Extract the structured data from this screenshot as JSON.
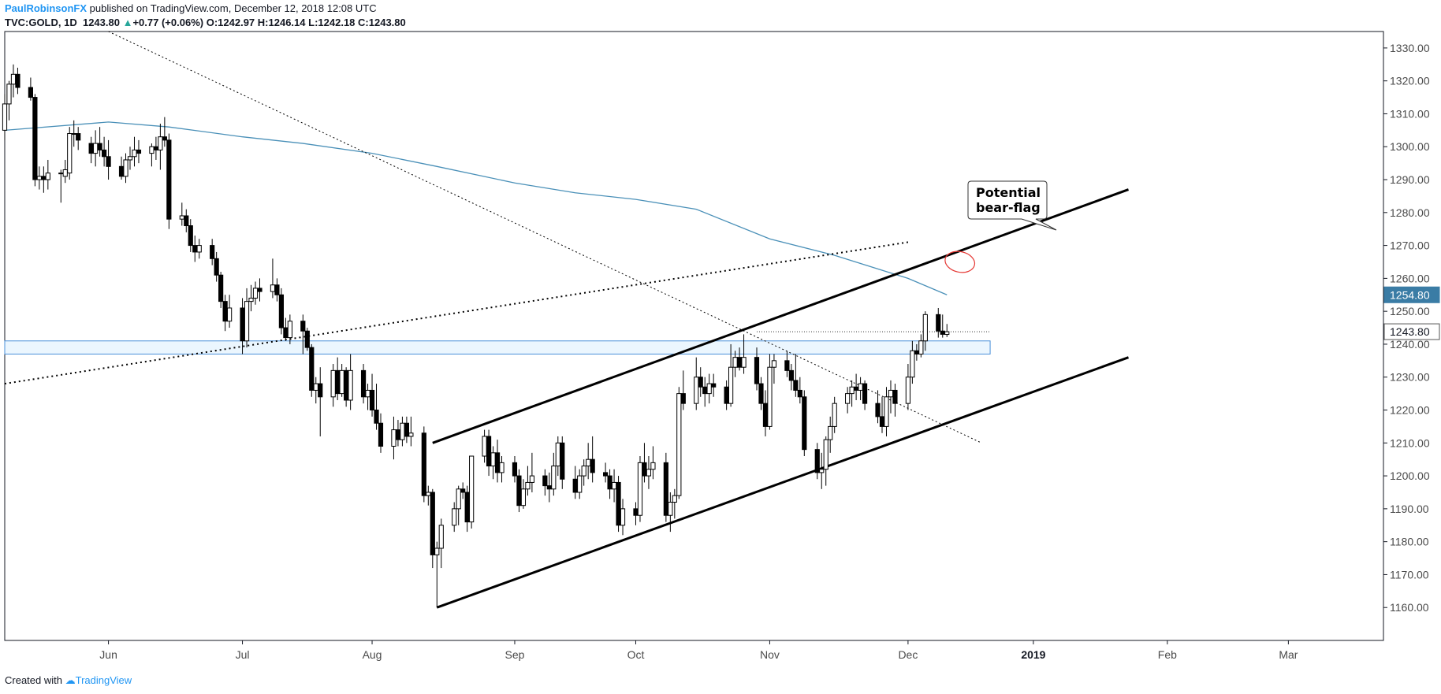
{
  "header": {
    "author": "PaulRobinsonFX",
    "published_text": "published on TradingView.com, December 12, 2018 12:08 UTC",
    "symbol": "TVC:GOLD, 1D",
    "last": "1243.80",
    "change": "+0.77 (+0.06%)",
    "o_label": "O:",
    "o_value": "1242.97",
    "h_label": "H:",
    "h_value": "1246.14",
    "l_label": "L:",
    "l_value": "1242.18",
    "c_label": "C:",
    "c_value": "1243.80"
  },
  "footer": {
    "created_with": "Created with",
    "brand": "TradingView"
  },
  "price_labels": {
    "sma": "1254.80",
    "last": "1243.80"
  },
  "annotation": {
    "line1": "Potential",
    "line2": "bear-flag"
  },
  "colors": {
    "up": "#ffffff",
    "down": "#000000",
    "candle_border": "#000000",
    "sma": "#4a90b8",
    "zone_fill": "#e3f2fd",
    "zone_border": "#4a90d9",
    "circle": "#e53935",
    "sma_tag": "#3a7ca5",
    "last_tag_border": "#555555"
  },
  "chart_data": {
    "type": "candlestick",
    "y_axis": {
      "range": [
        1150,
        1335
      ],
      "ticks": [
        "1160.00",
        "1170.00",
        "1180.00",
        "1190.00",
        "1200.00",
        "1210.00",
        "1220.00",
        "1230.00",
        "1240.00",
        "1250.00",
        "1260.00",
        "1270.00",
        "1280.00",
        "1290.00",
        "1300.00",
        "1310.00",
        "1320.00",
        "1330.00"
      ]
    },
    "x_axis": {
      "range": [
        "2018-05-08",
        "2019-03-23"
      ],
      "ticks": [
        {
          "date": "2018-06-01",
          "label": "Jun"
        },
        {
          "date": "2018-07-02",
          "label": "Jul"
        },
        {
          "date": "2018-08-01",
          "label": "Aug"
        },
        {
          "date": "2018-09-03",
          "label": "Sep"
        },
        {
          "date": "2018-10-01",
          "label": "Oct"
        },
        {
          "date": "2018-11-01",
          "label": "Nov"
        },
        {
          "date": "2018-12-03",
          "label": "Dec"
        },
        {
          "date": "2019-01-01",
          "label": "2019",
          "bold": true
        },
        {
          "date": "2019-02-01",
          "label": "Feb"
        },
        {
          "date": "2019-03-01",
          "label": "Mar"
        }
      ]
    },
    "candles": [
      [
        "2018-05-08",
        1305,
        1316,
        1302,
        1313
      ],
      [
        "2018-05-09",
        1313,
        1320,
        1308,
        1319
      ],
      [
        "2018-05-10",
        1319,
        1325,
        1315,
        1322
      ],
      [
        "2018-05-11",
        1322,
        1324,
        1316,
        1318
      ],
      [
        "2018-05-14",
        1318,
        1321,
        1314,
        1315
      ],
      [
        "2018-05-15",
        1315,
        1316,
        1288,
        1290
      ],
      [
        "2018-05-16",
        1290,
        1294,
        1287,
        1291
      ],
      [
        "2018-05-17",
        1291,
        1294,
        1286,
        1290
      ],
      [
        "2018-05-18",
        1290,
        1296,
        1287,
        1292
      ],
      [
        "2018-05-21",
        1292,
        1293,
        1283,
        1292
      ],
      [
        "2018-05-22",
        1291,
        1296,
        1289,
        1293
      ],
      [
        "2018-05-23",
        1292,
        1306,
        1290,
        1304
      ],
      [
        "2018-05-24",
        1304,
        1308,
        1300,
        1304
      ],
      [
        "2018-05-25",
        1304,
        1306,
        1299,
        1302
      ],
      [
        "2018-05-28",
        1301,
        1303,
        1295,
        1298
      ],
      [
        "2018-05-29",
        1298,
        1305,
        1294,
        1301
      ],
      [
        "2018-05-30",
        1301,
        1306,
        1297,
        1299
      ],
      [
        "2018-05-31",
        1299,
        1303,
        1294,
        1297
      ],
      [
        "2018-06-01",
        1297,
        1302,
        1290,
        1294
      ],
      [
        "2018-06-04",
        1294,
        1297,
        1290,
        1291
      ],
      [
        "2018-06-05",
        1291,
        1298,
        1289,
        1296
      ],
      [
        "2018-06-06",
        1296,
        1300,
        1293,
        1297
      ],
      [
        "2018-06-07",
        1297,
        1303,
        1294,
        1299
      ],
      [
        "2018-06-08",
        1299,
        1302,
        1295,
        1298
      ],
      [
        "2018-06-11",
        1298,
        1301,
        1294,
        1300
      ],
      [
        "2018-06-12",
        1300,
        1303,
        1296,
        1299
      ],
      [
        "2018-06-13",
        1299,
        1307,
        1293,
        1303
      ],
      [
        "2018-06-14",
        1303,
        1309,
        1300,
        1302
      ],
      [
        "2018-06-15",
        1302,
        1304,
        1275,
        1278
      ],
      [
        "2018-06-18",
        1278,
        1283,
        1276,
        1279
      ],
      [
        "2018-06-19",
        1279,
        1281,
        1274,
        1276
      ],
      [
        "2018-06-20",
        1276,
        1278,
        1268,
        1270
      ],
      [
        "2018-06-21",
        1270,
        1273,
        1265,
        1268
      ],
      [
        "2018-06-22",
        1268,
        1272,
        1266,
        1270
      ],
      [
        "2018-06-25",
        1270,
        1272,
        1264,
        1266
      ],
      [
        "2018-06-26",
        1266,
        1268,
        1259,
        1261
      ],
      [
        "2018-06-27",
        1261,
        1262,
        1251,
        1253
      ],
      [
        "2018-06-28",
        1253,
        1255,
        1244,
        1247
      ],
      [
        "2018-06-29",
        1247,
        1255,
        1245,
        1251
      ],
      [
        "2018-07-02",
        1251,
        1254,
        1237,
        1241
      ],
      [
        "2018-07-03",
        1241,
        1257,
        1239,
        1253
      ],
      [
        "2018-07-04",
        1253,
        1258,
        1250,
        1254
      ],
      [
        "2018-07-05",
        1254,
        1259,
        1252,
        1257
      ],
      [
        "2018-07-06",
        1257,
        1260,
        1253,
        1256
      ],
      [
        "2018-07-09",
        1256,
        1266,
        1254,
        1258
      ],
      [
        "2018-07-10",
        1258,
        1260,
        1253,
        1255
      ],
      [
        "2018-07-11",
        1255,
        1257,
        1243,
        1245
      ],
      [
        "2018-07-12",
        1245,
        1248,
        1241,
        1242
      ],
      [
        "2018-07-13",
        1242,
        1249,
        1240,
        1247
      ],
      [
        "2018-07-16",
        1247,
        1249,
        1237,
        1244
      ],
      [
        "2018-07-17",
        1244,
        1245,
        1238,
        1239
      ],
      [
        "2018-07-18",
        1239,
        1240,
        1224,
        1226
      ],
      [
        "2018-07-19",
        1226,
        1230,
        1222,
        1228
      ],
      [
        "2018-07-20",
        1228,
        1233,
        1212,
        1224
      ],
      [
        "2018-07-23",
        1224,
        1234,
        1221,
        1232
      ],
      [
        "2018-07-24",
        1232,
        1236,
        1223,
        1225
      ],
      [
        "2018-07-25",
        1225,
        1234,
        1224,
        1232
      ],
      [
        "2018-07-26",
        1232,
        1233,
        1221,
        1223
      ],
      [
        "2018-07-27",
        1223,
        1237,
        1220,
        1232
      ],
      [
        "2018-07-30",
        1232,
        1234,
        1222,
        1224
      ],
      [
        "2018-07-31",
        1224,
        1228,
        1220,
        1226
      ],
      [
        "2018-08-01",
        1226,
        1231,
        1218,
        1220
      ],
      [
        "2018-08-02",
        1220,
        1228,
        1214,
        1216
      ],
      [
        "2018-08-03",
        1216,
        1219,
        1207,
        1209
      ],
      [
        "2018-08-06",
        1209,
        1218,
        1205,
        1214
      ],
      [
        "2018-08-07",
        1214,
        1217,
        1209,
        1211
      ],
      [
        "2018-08-08",
        1211,
        1218,
        1209,
        1216
      ],
      [
        "2018-08-09",
        1216,
        1218,
        1210,
        1212
      ],
      [
        "2018-08-10",
        1212,
        1218,
        1209,
        1213
      ],
      [
        "2018-08-13",
        1213,
        1215,
        1192,
        1194
      ],
      [
        "2018-08-14",
        1194,
        1197,
        1191,
        1195
      ],
      [
        "2018-08-15",
        1195,
        1196,
        1172,
        1176
      ],
      [
        "2018-08-16",
        1176,
        1180,
        1160,
        1178
      ],
      [
        "2018-08-17",
        1178,
        1187,
        1172,
        1185
      ],
      [
        "2018-08-20",
        1185,
        1192,
        1183,
        1190
      ],
      [
        "2018-08-21",
        1190,
        1197,
        1185,
        1196
      ],
      [
        "2018-08-22",
        1196,
        1198,
        1193,
        1195
      ],
      [
        "2018-08-23",
        1195,
        1197,
        1183,
        1186
      ],
      [
        "2018-08-24",
        1186,
        1206,
        1184,
        1206
      ],
      [
        "2018-08-27",
        1206,
        1214,
        1204,
        1212
      ],
      [
        "2018-08-28",
        1212,
        1214,
        1200,
        1203
      ],
      [
        "2018-08-29",
        1203,
        1209,
        1199,
        1207
      ],
      [
        "2018-08-30",
        1207,
        1211,
        1198,
        1201
      ],
      [
        "2018-08-31",
        1201,
        1206,
        1198,
        1204
      ],
      [
        "2018-09-03",
        1204,
        1206,
        1198,
        1200
      ],
      [
        "2018-09-04",
        1200,
        1202,
        1189,
        1191
      ],
      [
        "2018-09-05",
        1191,
        1199,
        1190,
        1196
      ],
      [
        "2018-09-06",
        1196,
        1203,
        1194,
        1198
      ],
      [
        "2018-09-07",
        1198,
        1207,
        1195,
        1200
      ],
      [
        "2018-09-10",
        1200,
        1202,
        1194,
        1197
      ],
      [
        "2018-09-11",
        1197,
        1201,
        1192,
        1196
      ],
      [
        "2018-09-12",
        1196,
        1207,
        1194,
        1203
      ],
      [
        "2018-09-13",
        1203,
        1212,
        1200,
        1210
      ],
      [
        "2018-09-14",
        1210,
        1212,
        1196,
        1199
      ],
      [
        "2018-09-17",
        1199,
        1203,
        1193,
        1195
      ],
      [
        "2018-09-18",
        1195,
        1202,
        1193,
        1200
      ],
      [
        "2018-09-19",
        1200,
        1205,
        1197,
        1203
      ],
      [
        "2018-09-20",
        1203,
        1210,
        1199,
        1205
      ],
      [
        "2018-09-21",
        1205,
        1212,
        1198,
        1201
      ],
      [
        "2018-09-24",
        1201,
        1204,
        1198,
        1200
      ],
      [
        "2018-09-25",
        1200,
        1202,
        1193,
        1196
      ],
      [
        "2018-09-26",
        1196,
        1202,
        1192,
        1198
      ],
      [
        "2018-09-27",
        1198,
        1200,
        1183,
        1185
      ],
      [
        "2018-09-28",
        1185,
        1193,
        1182,
        1190
      ],
      [
        "2018-10-01",
        1190,
        1192,
        1185,
        1188
      ],
      [
        "2018-10-02",
        1188,
        1206,
        1186,
        1204
      ],
      [
        "2018-10-03",
        1204,
        1210,
        1198,
        1200
      ],
      [
        "2018-10-04",
        1200,
        1206,
        1196,
        1202
      ],
      [
        "2018-10-05",
        1202,
        1209,
        1199,
        1204
      ],
      [
        "2018-10-08",
        1204,
        1207,
        1186,
        1188
      ],
      [
        "2018-10-09",
        1188,
        1195,
        1183,
        1192
      ],
      [
        "2018-10-10",
        1192,
        1196,
        1187,
        1194
      ],
      [
        "2018-10-11",
        1194,
        1227,
        1193,
        1225
      ],
      [
        "2018-10-12",
        1225,
        1232,
        1220,
        1222
      ],
      [
        "2018-10-15",
        1222,
        1236,
        1220,
        1230
      ],
      [
        "2018-10-16",
        1230,
        1233,
        1224,
        1227
      ],
      [
        "2018-10-17",
        1227,
        1230,
        1221,
        1225
      ],
      [
        "2018-10-18",
        1225,
        1231,
        1222,
        1228
      ],
      [
        "2018-10-19",
        1228,
        1231,
        1224,
        1227
      ],
      [
        "2018-10-22",
        1227,
        1229,
        1220,
        1222
      ],
      [
        "2018-10-23",
        1222,
        1240,
        1221,
        1233
      ],
      [
        "2018-10-24",
        1233,
        1238,
        1230,
        1236
      ],
      [
        "2018-10-25",
        1236,
        1239,
        1232,
        1233
      ],
      [
        "2018-10-26",
        1233,
        1243,
        1231,
        1236
      ],
      [
        "2018-10-29",
        1236,
        1239,
        1226,
        1228
      ],
      [
        "2018-10-30",
        1228,
        1230,
        1220,
        1222
      ],
      [
        "2018-10-31",
        1222,
        1226,
        1212,
        1215
      ],
      [
        "2018-11-01",
        1215,
        1237,
        1214,
        1233
      ],
      [
        "2018-11-02",
        1233,
        1237,
        1228,
        1235
      ],
      [
        "2018-11-05",
        1235,
        1238,
        1230,
        1232
      ],
      [
        "2018-11-06",
        1232,
        1234,
        1226,
        1229
      ],
      [
        "2018-11-07",
        1229,
        1237,
        1224,
        1226
      ],
      [
        "2018-11-08",
        1226,
        1230,
        1222,
        1224
      ],
      [
        "2018-11-09",
        1224,
        1226,
        1206,
        1208
      ],
      [
        "2018-11-12",
        1208,
        1210,
        1199,
        1201
      ],
      [
        "2018-11-13",
        1201,
        1207,
        1196,
        1202
      ],
      [
        "2018-11-14",
        1202,
        1212,
        1197,
        1211
      ],
      [
        "2018-11-15",
        1211,
        1218,
        1207,
        1215
      ],
      [
        "2018-11-16",
        1215,
        1224,
        1213,
        1222
      ],
      [
        "2018-11-19",
        1222,
        1227,
        1219,
        1225
      ],
      [
        "2018-11-20",
        1225,
        1229,
        1221,
        1227
      ],
      [
        "2018-11-21",
        1227,
        1231,
        1223,
        1226
      ],
      [
        "2018-11-22",
        1226,
        1230,
        1223,
        1228
      ],
      [
        "2018-11-23",
        1228,
        1229,
        1220,
        1222
      ],
      [
        "2018-11-26",
        1222,
        1226,
        1216,
        1218
      ],
      [
        "2018-11-27",
        1218,
        1224,
        1213,
        1215
      ],
      [
        "2018-11-28",
        1215,
        1227,
        1212,
        1224
      ],
      [
        "2018-11-29",
        1224,
        1229,
        1219,
        1226
      ],
      [
        "2018-11-30",
        1226,
        1228,
        1218,
        1222
      ],
      [
        "2018-12-03",
        1222,
        1234,
        1220,
        1230
      ],
      [
        "2018-12-04",
        1230,
        1241,
        1228,
        1238
      ],
      [
        "2018-12-05",
        1238,
        1240,
        1235,
        1237
      ],
      [
        "2018-12-06",
        1237,
        1243,
        1236,
        1241
      ],
      [
        "2018-12-07",
        1241,
        1250,
        1238,
        1249
      ],
      [
        "2018-12-10",
        1249,
        1251,
        1242,
        1244
      ],
      [
        "2018-12-11",
        1244,
        1249,
        1242,
        1243
      ],
      [
        "2018-12-12",
        1242.97,
        1246.14,
        1242.18,
        1243.8
      ]
    ],
    "sma": [
      [
        "2018-05-08",
        1305
      ],
      [
        "2018-06-01",
        1307.5
      ],
      [
        "2018-06-15",
        1306
      ],
      [
        "2018-07-02",
        1303
      ],
      [
        "2018-07-16",
        1301
      ],
      [
        "2018-08-01",
        1298
      ],
      [
        "2018-08-16",
        1294
      ],
      [
        "2018-09-03",
        1289
      ],
      [
        "2018-09-17",
        1286
      ],
      [
        "2018-10-01",
        1284
      ],
      [
        "2018-10-15",
        1281
      ],
      [
        "2018-11-01",
        1272
      ],
      [
        "2018-11-16",
        1267
      ],
      [
        "2018-12-03",
        1260
      ],
      [
        "2018-12-12",
        1255
      ]
    ],
    "lines": [
      {
        "name": "upper-channel",
        "from": [
          "2018-08-15",
          1210
        ],
        "to": [
          "2019-01-23",
          1287
        ],
        "style": "solid",
        "width": 3
      },
      {
        "name": "lower-channel",
        "from": [
          "2018-08-16",
          1160
        ],
        "to": [
          "2019-01-23",
          1236
        ],
        "style": "solid",
        "width": 3
      },
      {
        "name": "dotted-trendline",
        "from": [
          "2018-05-08",
          1228
        ],
        "to": [
          "2018-12-03",
          1271
        ],
        "style": "dotted",
        "width": 2
      },
      {
        "name": "down-trendline",
        "from": [
          "2018-06-01",
          1335
        ],
        "to": [
          "2018-12-20",
          1210
        ],
        "style": "dotted",
        "width": 1
      }
    ],
    "zone": {
      "from": "2018-05-08",
      "to": "2018-12-22",
      "low": 1237,
      "high": 1241
    },
    "last_price_line": {
      "from": "2018-10-29",
      "to": "2018-12-22",
      "value": 1243.8
    },
    "ellipse": {
      "date": "2018-12-15",
      "value": 1265
    }
  }
}
